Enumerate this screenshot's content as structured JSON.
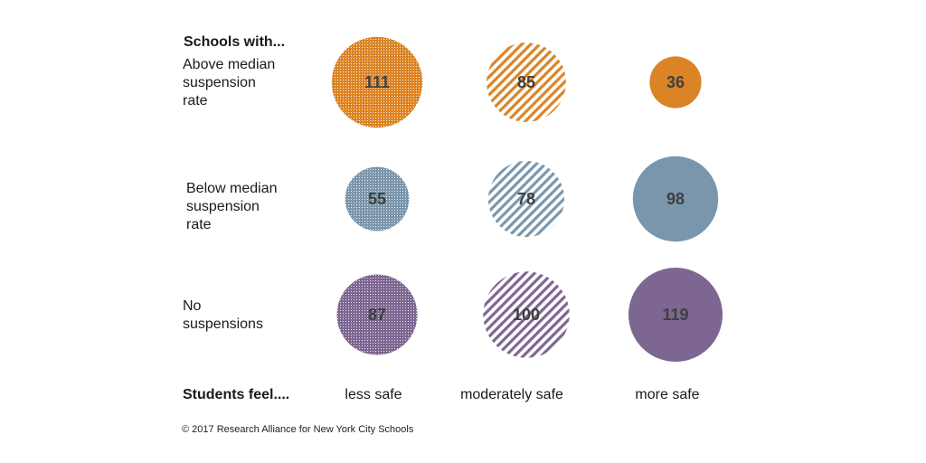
{
  "chart_data": {
    "type": "bubble-matrix",
    "row_header": "Schools with...",
    "col_header": "Students feel....",
    "rows": [
      {
        "label_lines": [
          "Above median",
          "suspension",
          "rate"
        ],
        "color": "#DB8425"
      },
      {
        "label_lines": [
          "Below median",
          "suspension",
          "rate"
        ],
        "color": "#7A96AC"
      },
      {
        "label_lines": [
          "No",
          "suspensions"
        ],
        "color": "#7D6691"
      }
    ],
    "columns": [
      {
        "label": "less safe",
        "fill": "dots"
      },
      {
        "label": "moderately safe",
        "fill": "stripes"
      },
      {
        "label": "more safe",
        "fill": "solid"
      }
    ],
    "values": [
      [
        111,
        85,
        36
      ],
      [
        55,
        78,
        98
      ],
      [
        87,
        100,
        119
      ]
    ],
    "value_labels": [
      [
        "111",
        "85",
        "36"
      ],
      [
        "55",
        "78",
        "98"
      ],
      [
        "87",
        "100",
        "119"
      ]
    ],
    "size_encoding": "area proportional to value",
    "credit": "© 2017 Research Alliance for New York City Schools"
  }
}
